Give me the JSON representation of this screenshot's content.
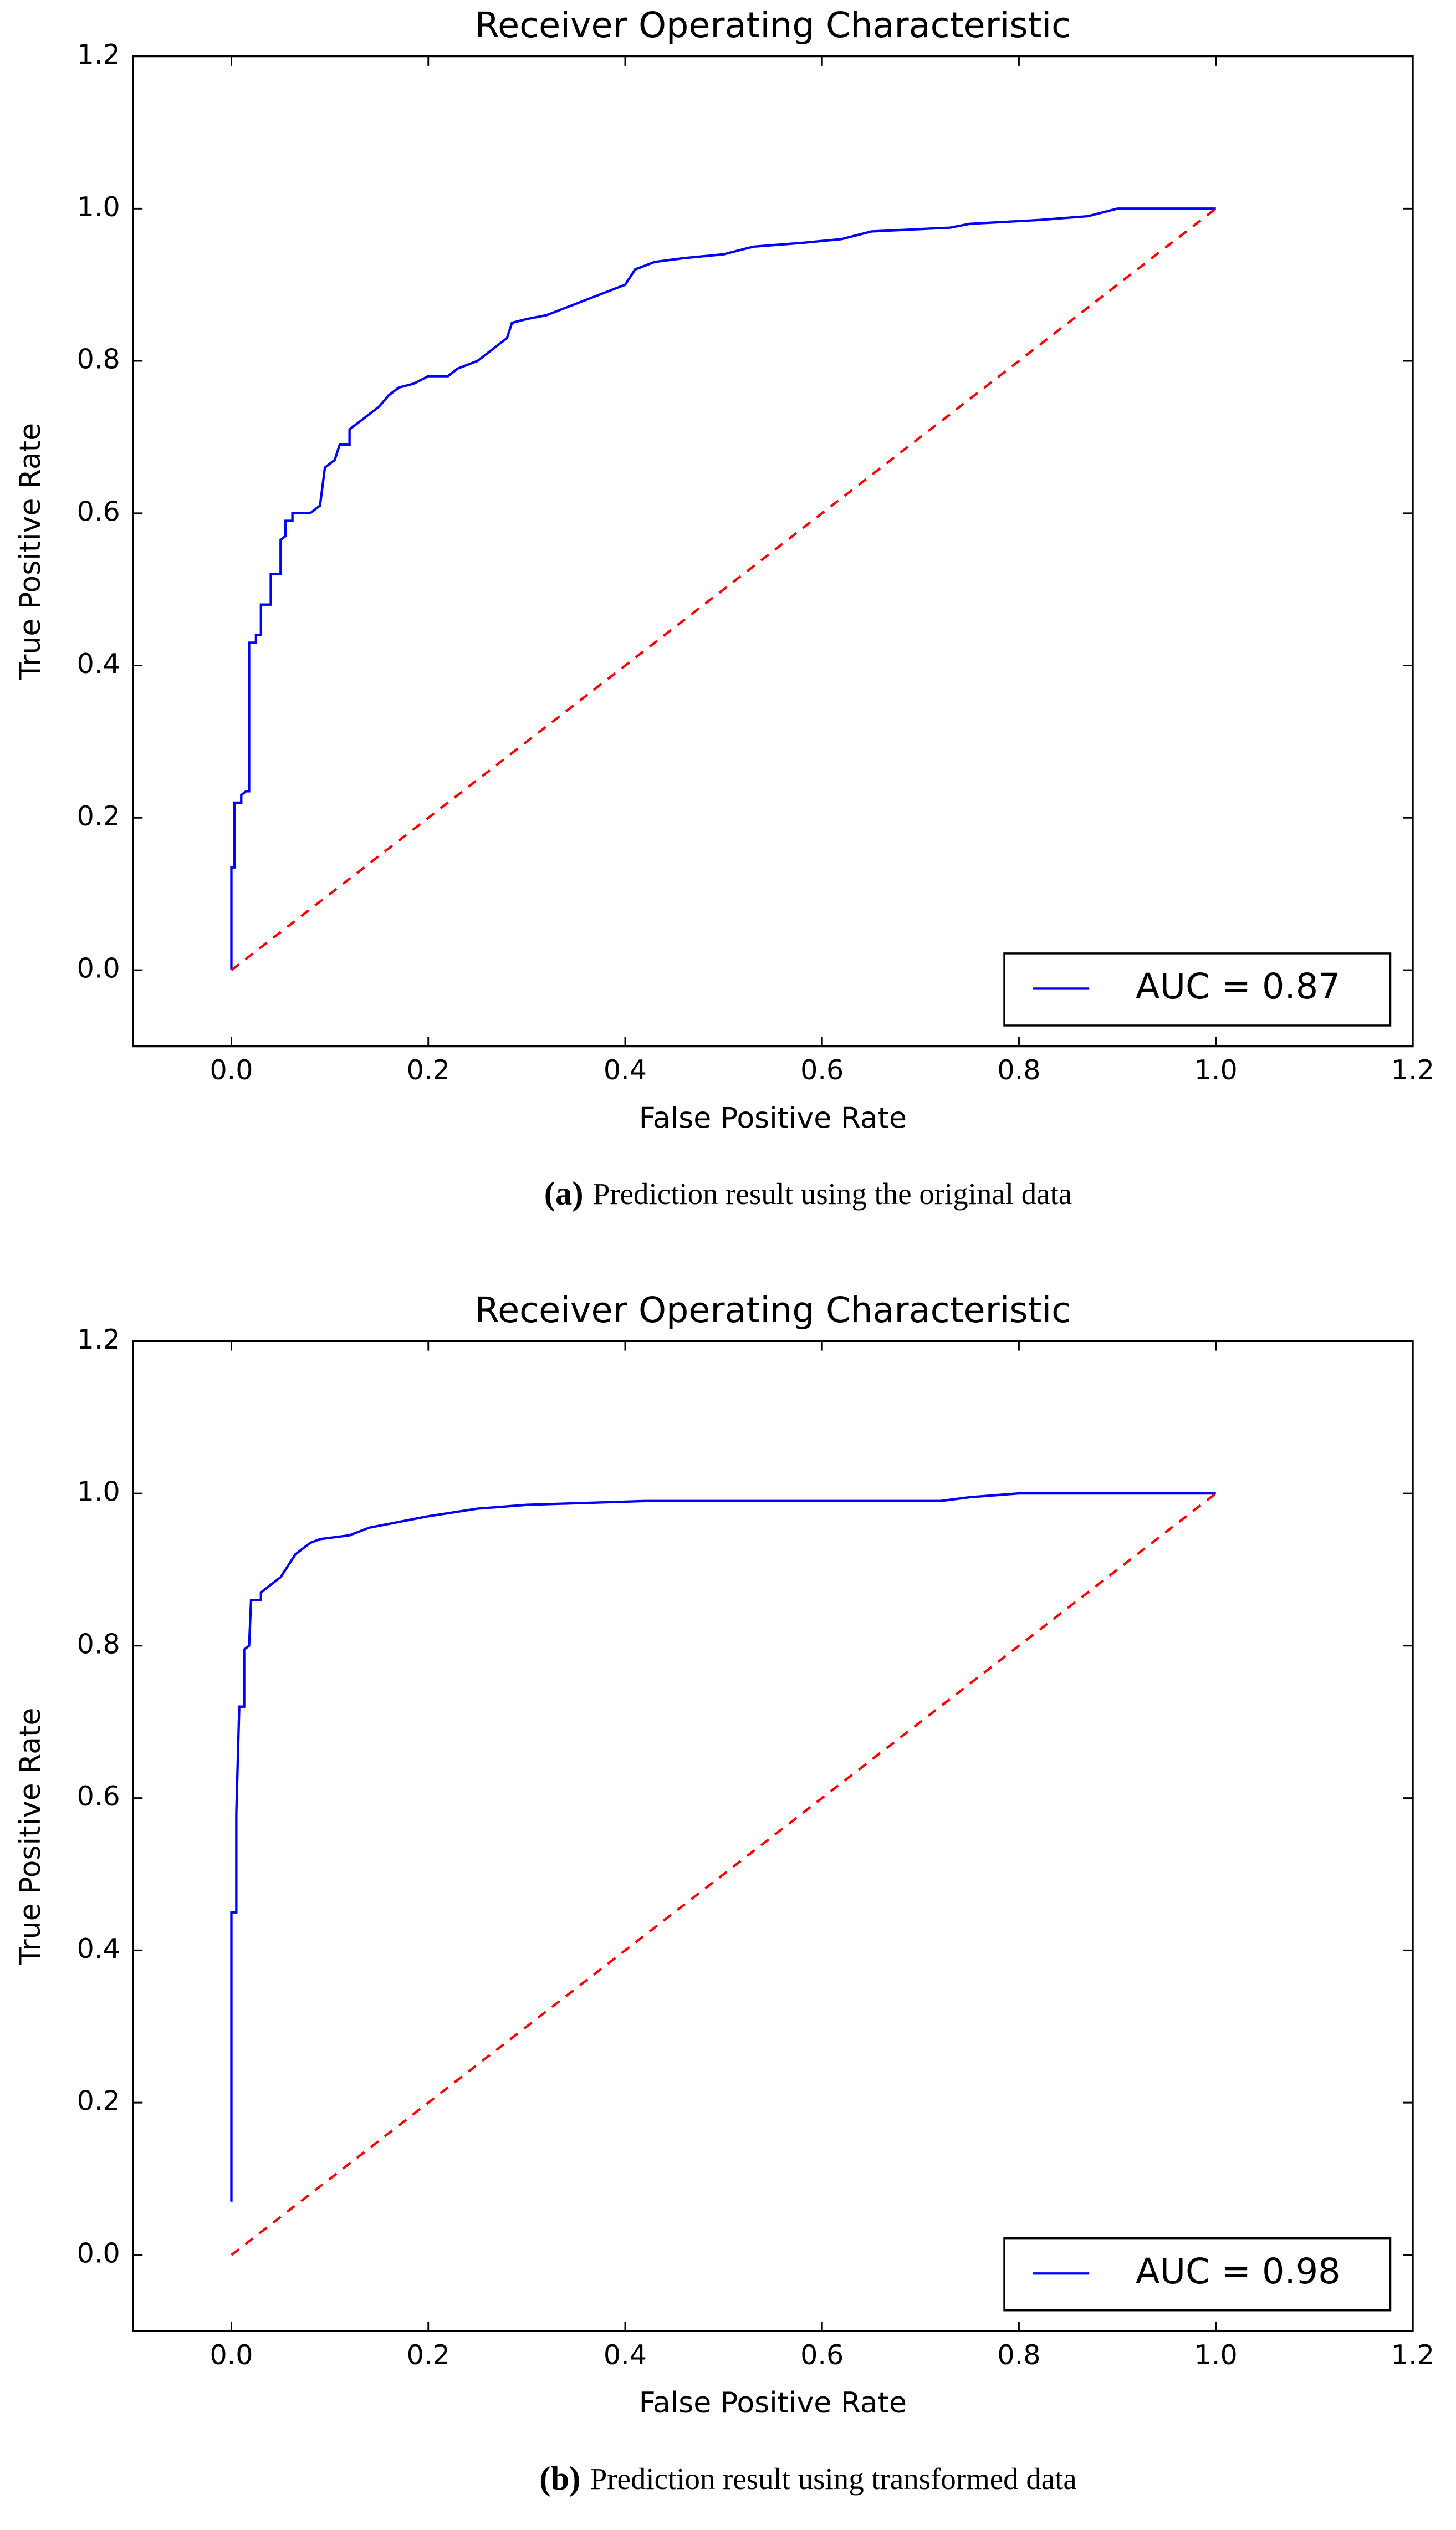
{
  "chart_data": [
    {
      "type": "line",
      "title": "Receiver Operating Characteristic",
      "xlabel": "False Positive Rate",
      "ylabel": "True Positive Rate",
      "caption": {
        "label": "(a)",
        "text": "Prediction result using the original data"
      },
      "xlim": [
        -0.1,
        1.2
      ],
      "ylim": [
        -0.1,
        1.2
      ],
      "xticks": [
        {
          "value": 0,
          "label": "0.0"
        },
        0.2,
        0.4,
        0.6,
        0.8,
        {
          "value": 1,
          "label": "1.0"
        },
        1.2
      ],
      "yticks": [
        {
          "value": 0,
          "label": "0.0"
        },
        0.2,
        0.4,
        0.6,
        0.8,
        {
          "value": 1,
          "label": "1.0"
        },
        1.2
      ],
      "legend": "lower right",
      "series": [
        {
          "name": "AUC = 0.87",
          "color": "#0000ff",
          "style": "solid",
          "x": [
            0,
            0,
            0.003,
            0.003,
            0.01,
            0.01,
            0.015,
            0.018,
            0.018,
            0.025,
            0.025,
            0.03,
            0.03,
            0.04,
            0.04,
            0.05,
            0.05,
            0.055,
            0.055,
            0.062,
            0.062,
            0.08,
            0.09,
            0.095,
            0.105,
            0.11,
            0.12,
            0.12,
            0.13,
            0.14,
            0.15,
            0.16,
            0.17,
            0.185,
            0.2,
            0.22,
            0.23,
            0.25,
            0.26,
            0.27,
            0.28,
            0.285,
            0.3,
            0.32,
            0.34,
            0.36,
            0.38,
            0.4,
            0.41,
            0.43,
            0.46,
            0.5,
            0.53,
            0.58,
            0.62,
            0.65,
            0.73,
            0.75,
            0.82,
            0.87,
            0.9,
            1.0
          ],
          "values": [
            0,
            0.135,
            0.135,
            0.22,
            0.22,
            0.23,
            0.235,
            0.235,
            0.43,
            0.43,
            0.44,
            0.44,
            0.48,
            0.48,
            0.52,
            0.52,
            0.565,
            0.57,
            0.59,
            0.59,
            0.6,
            0.6,
            0.61,
            0.66,
            0.67,
            0.69,
            0.69,
            0.71,
            0.72,
            0.73,
            0.74,
            0.755,
            0.765,
            0.77,
            0.78,
            0.78,
            0.79,
            0.8,
            0.81,
            0.82,
            0.83,
            0.85,
            0.855,
            0.86,
            0.87,
            0.88,
            0.89,
            0.9,
            0.92,
            0.93,
            0.935,
            0.94,
            0.95,
            0.955,
            0.96,
            0.97,
            0.975,
            0.98,
            0.985,
            0.99,
            1.0,
            1.0
          ]
        },
        {
          "color": "#ff0000",
          "style": "dashed",
          "x": [
            0,
            1
          ],
          "values": [
            0,
            1
          ]
        }
      ]
    },
    {
      "type": "line",
      "title": "Receiver Operating Characteristic",
      "xlabel": "False Positive Rate",
      "ylabel": "True Positive Rate",
      "caption": {
        "label": "(b)",
        "text": "Prediction result using transformed data"
      },
      "xlim": [
        -0.1,
        1.2
      ],
      "ylim": [
        -0.1,
        1.2
      ],
      "xticks": [
        {
          "value": 0,
          "label": "0.0"
        },
        0.2,
        0.4,
        0.6,
        0.8,
        {
          "value": 1,
          "label": "1.0"
        },
        1.2
      ],
      "yticks": [
        {
          "value": 0,
          "label": "0.0"
        },
        0.2,
        0.4,
        0.6,
        0.8,
        {
          "value": 1,
          "label": "1.0"
        },
        1.2
      ],
      "legend": "lower right",
      "series": [
        {
          "name": "AUC = 0.98",
          "color": "#0000ff",
          "style": "solid",
          "x": [
            0,
            0,
            0.005,
            0.005,
            0.008,
            0.013,
            0.013,
            0.018,
            0.02,
            0.03,
            0.03,
            0.04,
            0.05,
            0.055,
            0.06,
            0.065,
            0.075,
            0.08,
            0.09,
            0.12,
            0.14,
            0.16,
            0.2,
            0.25,
            0.3,
            0.42,
            0.72,
            0.75,
            0.8,
            1.0
          ],
          "values": [
            0.07,
            0.45,
            0.45,
            0.58,
            0.72,
            0.72,
            0.795,
            0.8,
            0.86,
            0.86,
            0.87,
            0.88,
            0.89,
            0.9,
            0.91,
            0.92,
            0.93,
            0.935,
            0.94,
            0.945,
            0.955,
            0.96,
            0.97,
            0.98,
            0.985,
            0.99,
            0.99,
            0.995,
            1.0,
            1.0
          ]
        },
        {
          "color": "#ff0000",
          "style": "dashed",
          "x": [
            0,
            1
          ],
          "values": [
            0,
            1
          ]
        }
      ]
    }
  ]
}
